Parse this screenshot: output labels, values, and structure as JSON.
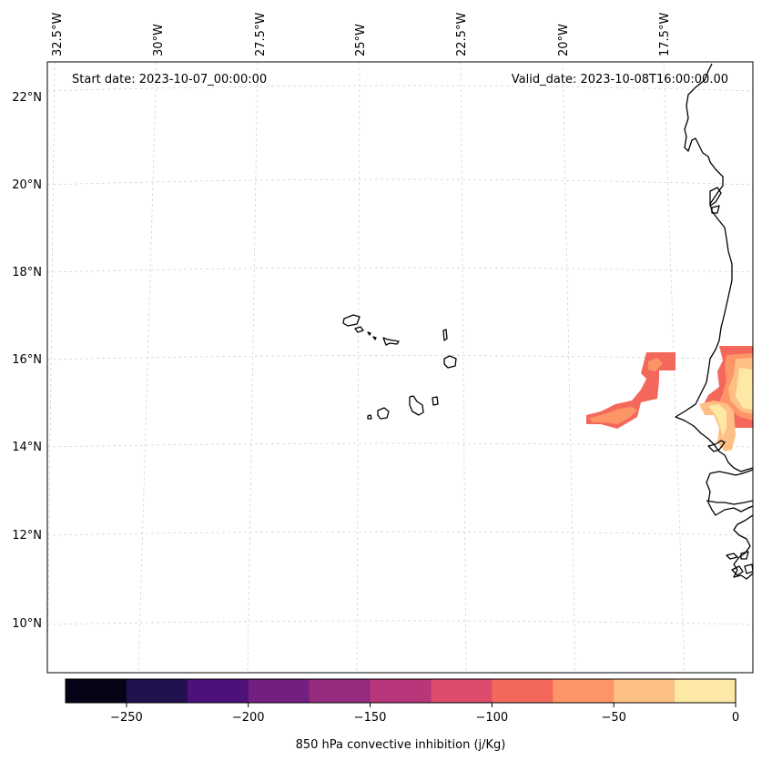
{
  "map": {
    "start_date_label": "Start date: 2023-10-07_00:00:00",
    "valid_date_label": "Valid_date: 2023-10-08T16:00:00.00",
    "lon_labels": [
      "32.5°W",
      "30°W",
      "27.5°W",
      "25°W",
      "22.5°W",
      "20°W",
      "17.5°W"
    ],
    "lat_labels": [
      "22°N",
      "20°N",
      "18°N",
      "16°N",
      "14°N",
      "12°N",
      "10°N"
    ],
    "region": "Cabo Verde islands and West African coast (Senegal, The Gambia, Guinea-Bissau)"
  },
  "colorbar": {
    "label": "850 hPa convective inhibition (j/Kg)",
    "ticks": [
      "−250",
      "−200",
      "−150",
      "−100",
      "−50",
      "0"
    ],
    "bins": [
      {
        "range": [
          -275,
          -250
        ],
        "color": "#050417"
      },
      {
        "range": [
          -250,
          -225
        ],
        "color": "#21114e"
      },
      {
        "range": [
          -225,
          -200
        ],
        "color": "#4e1179"
      },
      {
        "range": [
          -200,
          -175
        ],
        "color": "#721f81"
      },
      {
        "range": [
          -175,
          -150
        ],
        "color": "#952c80"
      },
      {
        "range": [
          -150,
          -125
        ],
        "color": "#b8367a"
      },
      {
        "range": [
          -125,
          -100
        ],
        "color": "#dd4a6b"
      },
      {
        "range": [
          -100,
          -75
        ],
        "color": "#f4685c"
      },
      {
        "range": [
          -75,
          -50
        ],
        "color": "#fd9566"
      },
      {
        "range": [
          -50,
          -25
        ],
        "color": "#febf84"
      },
      {
        "range": [
          -25,
          0
        ],
        "color": "#fde8a5"
      }
    ]
  }
}
